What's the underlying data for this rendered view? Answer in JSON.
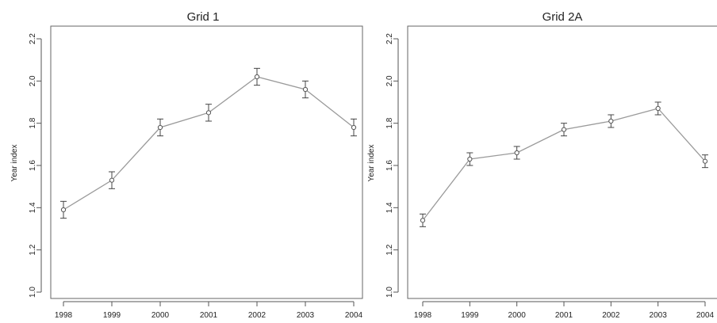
{
  "chart_data": [
    {
      "type": "line",
      "title": "Grid 1",
      "xlabel": "",
      "ylabel": "Year index",
      "categories": [
        "1998",
        "1999",
        "2000",
        "2001",
        "2002",
        "2003",
        "2004"
      ],
      "values": [
        1.39,
        1.53,
        1.78,
        1.85,
        2.02,
        1.96,
        1.78
      ],
      "error_low": [
        1.35,
        1.49,
        1.74,
        1.81,
        1.98,
        1.92,
        1.74
      ],
      "error_high": [
        1.43,
        1.57,
        1.82,
        1.89,
        2.06,
        2.0,
        1.82
      ],
      "ylim": [
        0.97,
        2.26
      ],
      "yticks": [
        "1.0",
        "1.2",
        "1.4",
        "1.6",
        "1.8",
        "2.0",
        "2.2"
      ],
      "grid": false,
      "marker": "open-circle",
      "line_color": "#9a9a9a",
      "marker_color": "#555555"
    },
    {
      "type": "line",
      "title": "Grid 2A",
      "xlabel": "",
      "ylabel": "Year index",
      "categories": [
        "1998",
        "1999",
        "2000",
        "2001",
        "2002",
        "2003",
        "2004"
      ],
      "values": [
        1.34,
        1.63,
        1.66,
        1.77,
        1.81,
        1.87,
        1.62
      ],
      "error_low": [
        1.31,
        1.6,
        1.63,
        1.74,
        1.78,
        1.84,
        1.59
      ],
      "error_high": [
        1.37,
        1.66,
        1.69,
        1.8,
        1.84,
        1.9,
        1.65
      ],
      "ylim": [
        0.97,
        2.26
      ],
      "yticks": [
        "1.0",
        "1.2",
        "1.4",
        "1.6",
        "1.8",
        "2.0",
        "2.2"
      ],
      "grid": false,
      "marker": "open-circle",
      "line_color": "#9a9a9a",
      "marker_color": "#555555"
    }
  ]
}
